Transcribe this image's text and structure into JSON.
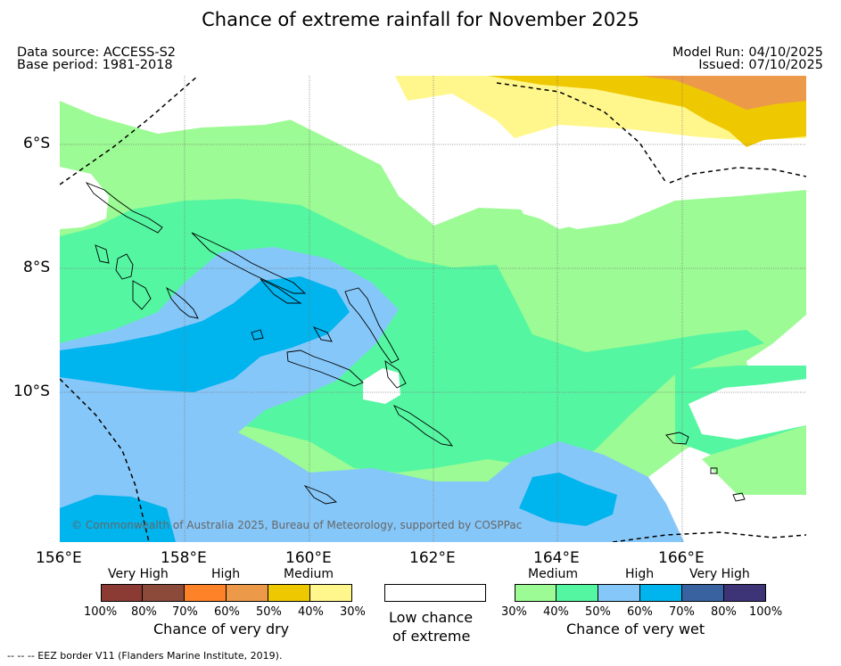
{
  "title": "Chance of extreme rainfall for November 2025",
  "header": {
    "data_source": "Data source: ACCESS-S2",
    "base_period": "Base period: 1981-2018",
    "model_run": "Model Run: 04/10/2025",
    "issued": "Issued: 07/10/2025"
  },
  "map": {
    "lon_labels": [
      "156°E",
      "158°E",
      "160°E",
      "162°E",
      "164°E",
      "166°E"
    ],
    "lat_labels": [
      "6°S",
      "8°S",
      "10°S"
    ],
    "copyright": "© Commonwealth of Australia 2025, Bureau of Meteorology, supported by COSPPac",
    "region_extent": {
      "lon_min": 156,
      "lon_max": 168,
      "lat_min": -12.4,
      "lat_max": -4.9
    }
  },
  "legend": {
    "dry": {
      "category_labels": [
        "Very High",
        "High",
        "Medium"
      ],
      "percent_labels": [
        "100%",
        "80%",
        "70%",
        "60%",
        "50%",
        "40%",
        "30%"
      ],
      "caption": "Chance of very dry",
      "colors": [
        "#8b3a34",
        "#8b4a3a",
        "#fd8228",
        "#ec9a4a",
        "#eec800",
        "#fff78c"
      ]
    },
    "neutral": {
      "caption_line1": "Low chance",
      "caption_line2": "of extreme",
      "color": "#ffffff"
    },
    "wet": {
      "category_labels": [
        "Medium",
        "High",
        "Very High"
      ],
      "percent_labels": [
        "30%",
        "40%",
        "50%",
        "60%",
        "70%",
        "80%",
        "100%"
      ],
      "caption": "Chance of very wet",
      "colors": [
        "#9cfb94",
        "#55f6a2",
        "#86c7f9",
        "#00b4ee",
        "#3862a0",
        "#3d3478"
      ]
    }
  },
  "footer": "--  --  -- EEZ border V11 (Flanders Marine Institute, 2019)."
}
